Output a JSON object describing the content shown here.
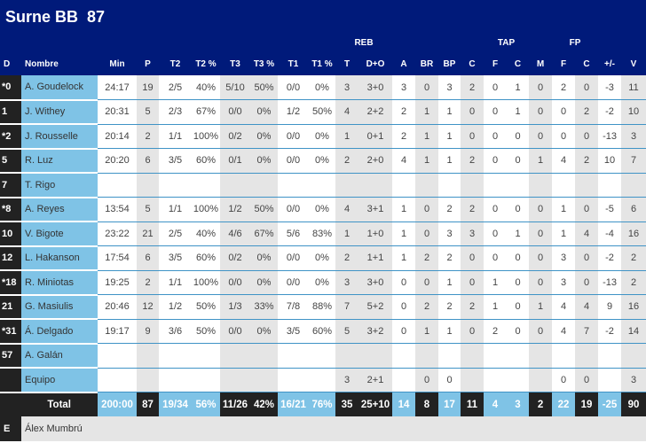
{
  "team": {
    "name": "Surne BB",
    "score": "87"
  },
  "group_headers": {
    "reb": "REB",
    "tap": "TAP",
    "fp": "FP"
  },
  "columns": [
    "D",
    "Nombre",
    "Min",
    "P",
    "T2",
    "T2 %",
    "T3",
    "T3 %",
    "T1",
    "T1 %",
    "T",
    "D+O",
    "A",
    "BR",
    "BP",
    "C",
    "F",
    "C",
    "M",
    "F",
    "C",
    "+/-",
    "V"
  ],
  "players": [
    [
      "*0",
      "A. Goudelock",
      "24:17",
      "19",
      "2/5",
      "40%",
      "5/10",
      "50%",
      "0/0",
      "0%",
      "3",
      "3+0",
      "3",
      "0",
      "3",
      "2",
      "0",
      "1",
      "0",
      "2",
      "0",
      "-3",
      "11"
    ],
    [
      "1",
      "J. Withey",
      "20:31",
      "5",
      "2/3",
      "67%",
      "0/0",
      "0%",
      "1/2",
      "50%",
      "4",
      "2+2",
      "2",
      "1",
      "1",
      "0",
      "0",
      "1",
      "0",
      "0",
      "2",
      "-2",
      "10"
    ],
    [
      "*2",
      "J. Rousselle",
      "20:14",
      "2",
      "1/1",
      "100%",
      "0/2",
      "0%",
      "0/0",
      "0%",
      "1",
      "0+1",
      "2",
      "1",
      "1",
      "0",
      "0",
      "0",
      "0",
      "0",
      "0",
      "-13",
      "3"
    ],
    [
      "5",
      "R. Luz",
      "20:20",
      "6",
      "3/5",
      "60%",
      "0/1",
      "0%",
      "0/0",
      "0%",
      "2",
      "2+0",
      "4",
      "1",
      "1",
      "2",
      "0",
      "0",
      "1",
      "4",
      "2",
      "10",
      "7"
    ],
    [
      "7",
      "T. Rigo",
      "",
      "",
      "",
      "",
      "",
      "",
      "",
      "",
      "",
      "",
      "",
      "",
      "",
      "",
      "",
      "",
      "",
      "",
      "",
      "",
      ""
    ],
    [
      "*8",
      "A. Reyes",
      "13:54",
      "5",
      "1/1",
      "100%",
      "1/2",
      "50%",
      "0/0",
      "0%",
      "4",
      "3+1",
      "1",
      "0",
      "2",
      "2",
      "0",
      "0",
      "0",
      "1",
      "0",
      "-5",
      "6"
    ],
    [
      "10",
      "V. Bigote",
      "23:22",
      "21",
      "2/5",
      "40%",
      "4/6",
      "67%",
      "5/6",
      "83%",
      "1",
      "1+0",
      "1",
      "0",
      "3",
      "3",
      "0",
      "1",
      "0",
      "1",
      "4",
      "-4",
      "16"
    ],
    [
      "12",
      "L. Hakanson",
      "17:54",
      "6",
      "3/5",
      "60%",
      "0/2",
      "0%",
      "0/0",
      "0%",
      "2",
      "1+1",
      "1",
      "2",
      "2",
      "0",
      "0",
      "0",
      "0",
      "3",
      "0",
      "-2",
      "2"
    ],
    [
      "*18",
      "R. Miniotas",
      "19:25",
      "2",
      "1/1",
      "100%",
      "0/0",
      "0%",
      "0/0",
      "0%",
      "3",
      "3+0",
      "0",
      "0",
      "1",
      "0",
      "1",
      "0",
      "0",
      "3",
      "0",
      "-13",
      "2"
    ],
    [
      "21",
      "G. Masiulis",
      "20:46",
      "12",
      "1/2",
      "50%",
      "1/3",
      "33%",
      "7/8",
      "88%",
      "7",
      "5+2",
      "0",
      "2",
      "2",
      "2",
      "1",
      "0",
      "1",
      "4",
      "4",
      "9",
      "16"
    ],
    [
      "*31",
      "Á. Delgado",
      "19:17",
      "9",
      "3/6",
      "50%",
      "0/0",
      "0%",
      "3/5",
      "60%",
      "5",
      "3+2",
      "0",
      "1",
      "1",
      "0",
      "2",
      "0",
      "0",
      "4",
      "7",
      "-2",
      "14"
    ],
    [
      "57",
      "A. Galán",
      "",
      "",
      "",
      "",
      "",
      "",
      "",
      "",
      "",
      "",
      "",
      "",
      "",
      "",
      "",
      "",
      "",
      "",
      "",
      "",
      ""
    ],
    [
      "",
      "Equipo",
      "",
      "",
      "",
      "",
      "",
      "",
      "",
      "",
      "3",
      "2+1",
      "",
      "0",
      "0",
      "",
      "",
      "",
      "",
      "0",
      "0",
      "",
      "3"
    ]
  ],
  "total": {
    "label": "Total",
    "values": [
      "200:00",
      "87",
      "19/34",
      "56%",
      "11/26",
      "42%",
      "16/21",
      "76%",
      "35",
      "25+10",
      "14",
      "8",
      "17",
      "11",
      "4",
      "3",
      "2",
      "22",
      "19",
      "-25",
      "90"
    ]
  },
  "coach": {
    "role": "E",
    "name": "Álex Mumbrú"
  },
  "colors": {
    "header": "#001a7a",
    "name_cell": "#7fc3e6",
    "dark": "#222222",
    "shade": "#e5e5e5"
  }
}
